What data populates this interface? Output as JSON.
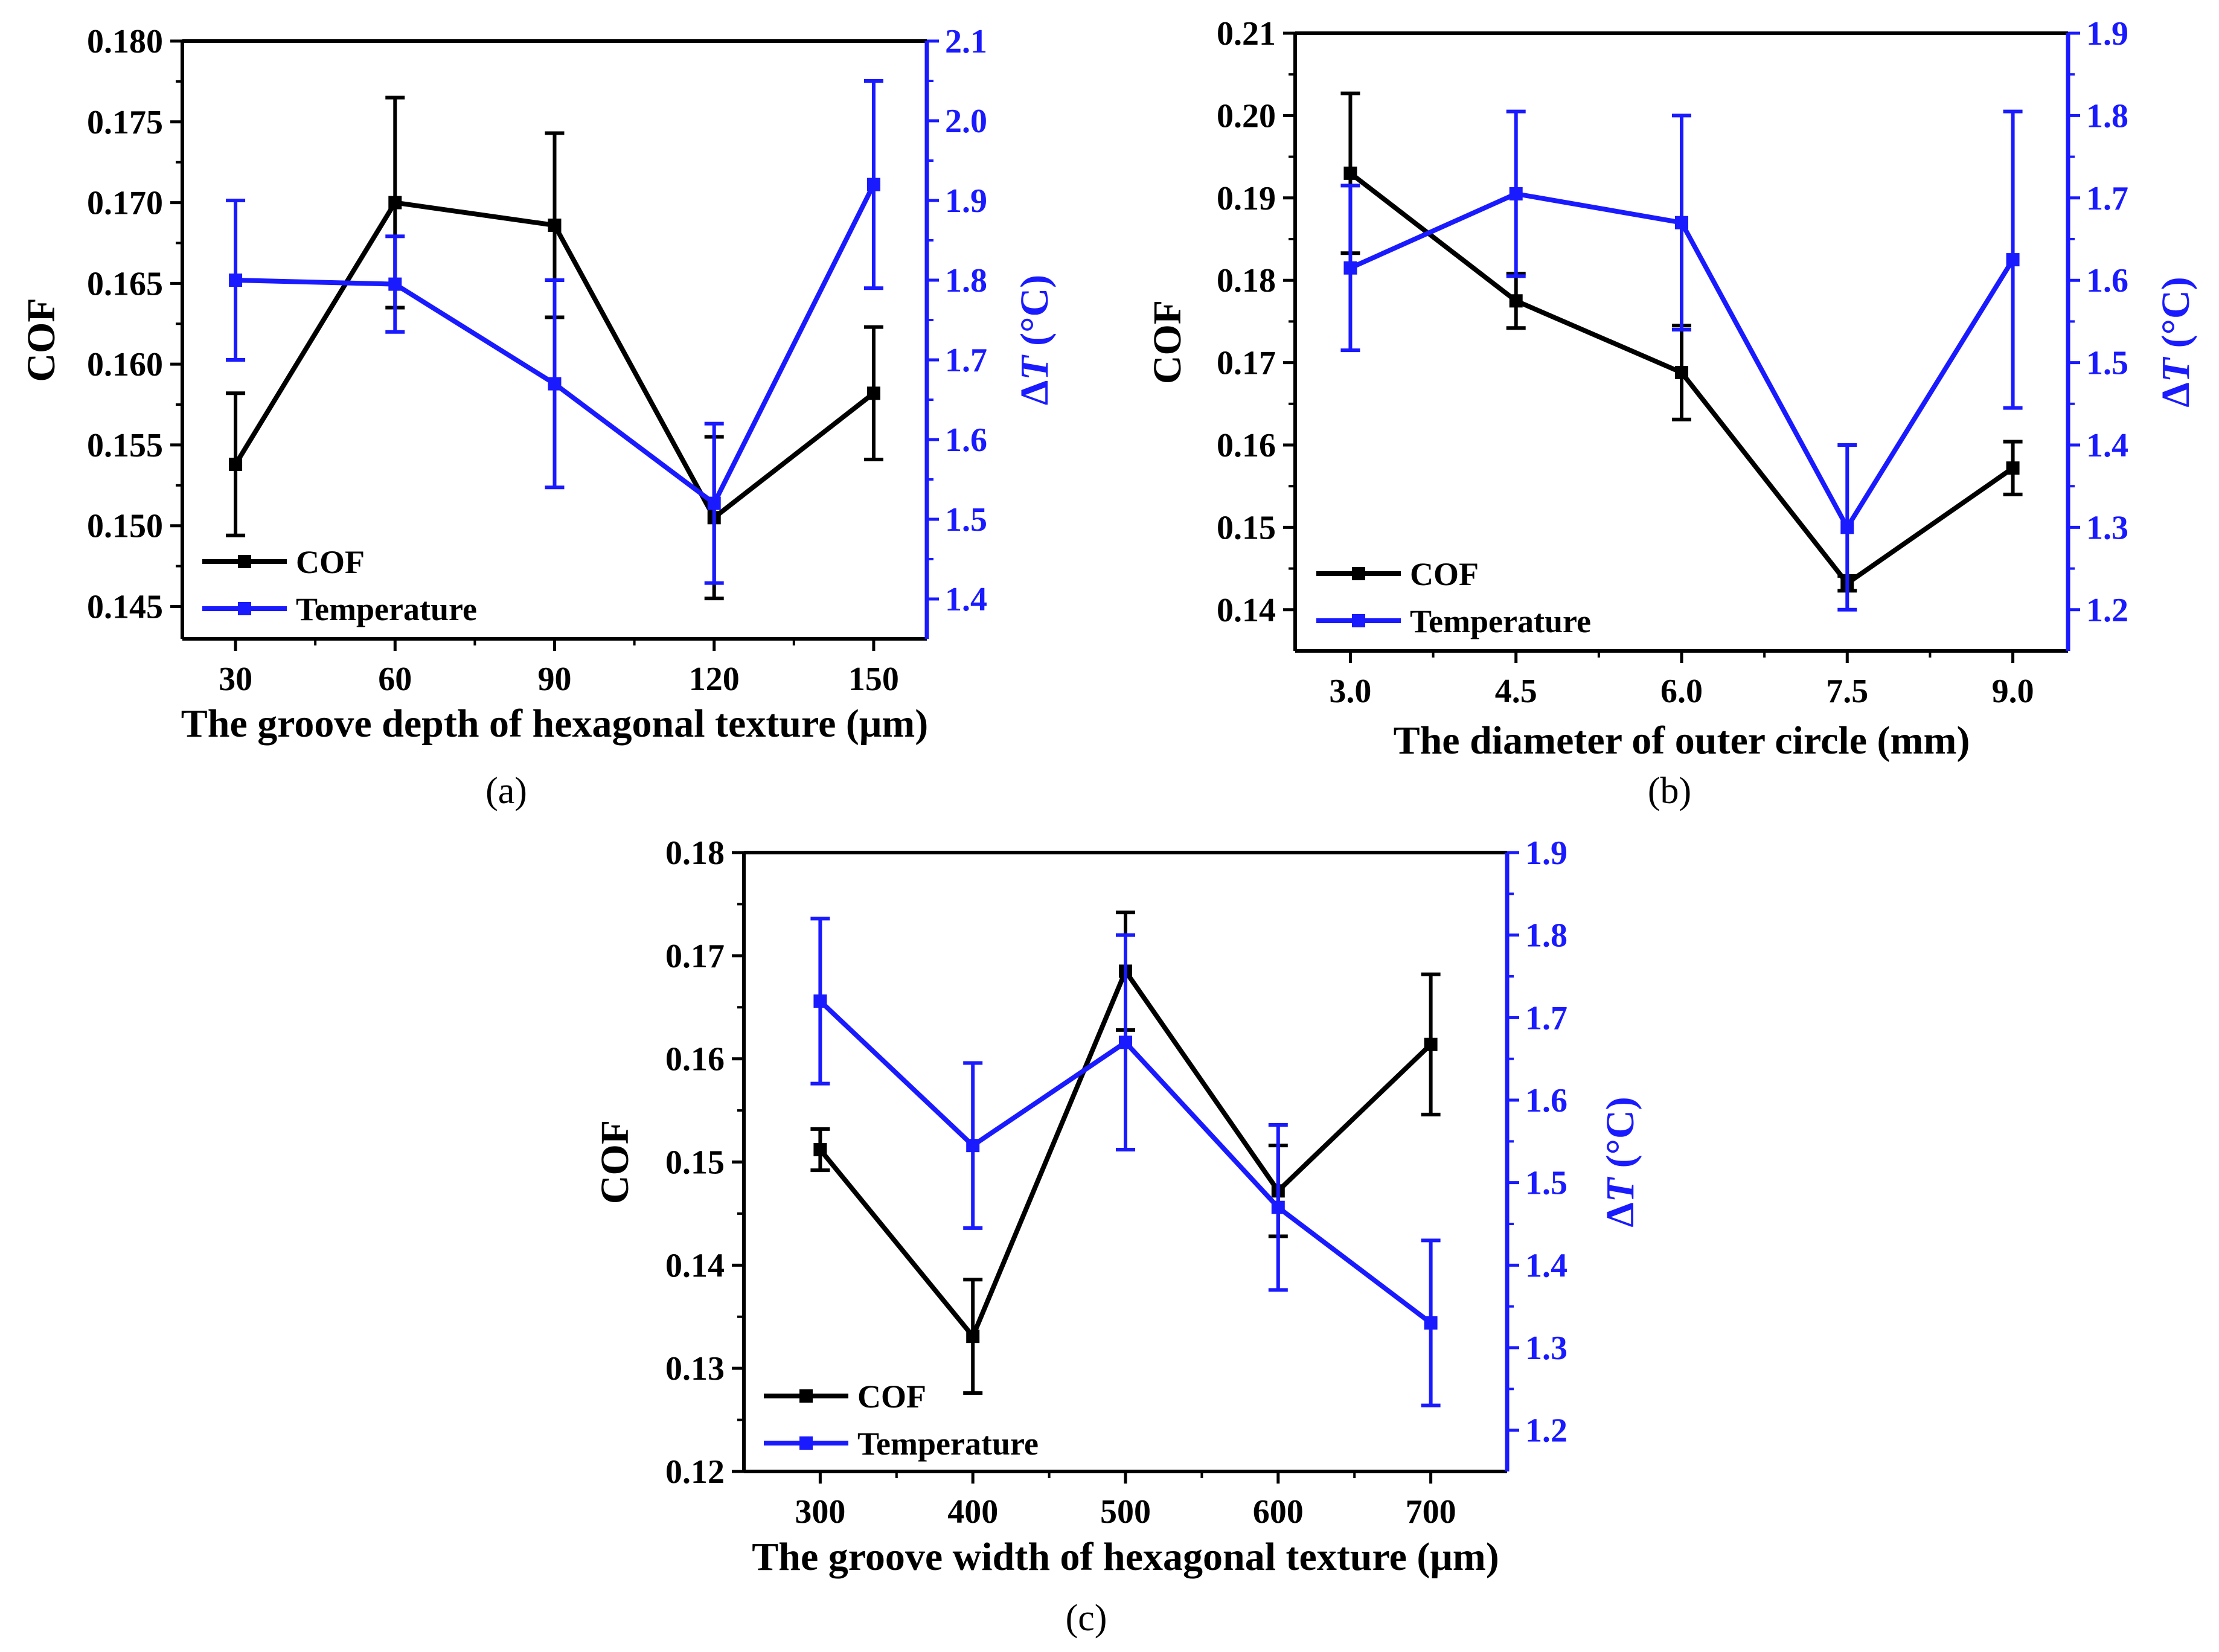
{
  "colors": {
    "cof": "#000000",
    "temperature": "#1a1aff"
  },
  "chart_data": [
    {
      "type": "line",
      "panel_label": "(a)",
      "xlabel": "The groove depth of hexagonal texture (μm)",
      "ylabel": "COF",
      "y2label_prefix": "Δ",
      "y2label_var": "T",
      "y2label_unit": " (°C)",
      "x": [
        30,
        60,
        90,
        120,
        150
      ],
      "xlim": [
        20,
        160
      ],
      "ylim": [
        0.143,
        0.18
      ],
      "y2lim": [
        1.35,
        2.1
      ],
      "xticks": [
        "30",
        "60",
        "90",
        "120",
        "150"
      ],
      "yticks": [
        "0.145",
        "0.150",
        "0.155",
        "0.160",
        "0.165",
        "0.170",
        "0.175",
        "0.180"
      ],
      "y2ticks": [
        "1.4",
        "1.5",
        "1.6",
        "1.7",
        "1.8",
        "1.9",
        "2.0",
        "2.1"
      ],
      "legend": "bottom-left",
      "series": [
        {
          "name": "COF",
          "axis": "left",
          "values": [
            0.1538,
            0.17,
            0.1686,
            0.1505,
            0.1582
          ],
          "errors": [
            0.0044,
            0.0065,
            0.0057,
            0.005,
            0.0041
          ]
        },
        {
          "name": "Temperature",
          "axis": "right",
          "values": [
            1.8,
            1.795,
            1.67,
            1.52,
            1.92
          ],
          "errors": [
            0.1,
            0.06,
            0.13,
            0.1,
            0.13
          ]
        }
      ]
    },
    {
      "type": "line",
      "panel_label": "(b)",
      "xlabel": "The diameter of outer circle (mm)",
      "ylabel": "COF",
      "y2label_prefix": "Δ",
      "y2label_var": "T",
      "y2label_unit": " (°C)",
      "x": [
        3.0,
        4.5,
        6.0,
        7.5,
        9.0
      ],
      "xlim": [
        2.5,
        9.5
      ],
      "ylim": [
        0.135,
        0.21
      ],
      "y2lim": [
        1.15,
        1.9
      ],
      "xticks": [
        "3.0",
        "4.5",
        "6.0",
        "7.5",
        "9.0"
      ],
      "yticks": [
        "0.14",
        "0.15",
        "0.16",
        "0.17",
        "0.18",
        "0.19",
        "0.20",
        "0.21"
      ],
      "y2ticks": [
        "1.2",
        "1.3",
        "1.4",
        "1.5",
        "1.6",
        "1.7",
        "1.8",
        "1.9"
      ],
      "legend": "bottom-left",
      "series": [
        {
          "name": "COF",
          "axis": "left",
          "values": [
            0.193,
            0.1775,
            0.1688,
            0.1432,
            0.1572
          ],
          "errors": [
            0.0097,
            0.0033,
            0.0057,
            0.0009,
            0.0032
          ]
        },
        {
          "name": "Temperature",
          "axis": "right",
          "values": [
            1.615,
            1.705,
            1.67,
            1.3,
            1.625
          ],
          "errors": [
            0.1,
            0.1,
            0.13,
            0.1,
            0.18
          ]
        }
      ]
    },
    {
      "type": "line",
      "panel_label": "(c)",
      "xlabel": "The groove width of hexagonal texture (μm)",
      "ylabel": "COF",
      "y2label_prefix": "Δ",
      "y2label_var": "T",
      "y2label_unit": " (°C)",
      "x": [
        300,
        400,
        500,
        600,
        700
      ],
      "xlim": [
        250,
        750
      ],
      "ylim": [
        0.12,
        0.18
      ],
      "y2lim": [
        1.15,
        1.9
      ],
      "xticks": [
        "300",
        "400",
        "500",
        "600",
        "700"
      ],
      "yticks": [
        "0.12",
        "0.13",
        "0.14",
        "0.15",
        "0.16",
        "0.17",
        "0.18"
      ],
      "y2ticks": [
        "1.2",
        "1.3",
        "1.4",
        "1.5",
        "1.6",
        "1.7",
        "1.8",
        "1.9"
      ],
      "legend": "bottom-left",
      "series": [
        {
          "name": "COF",
          "axis": "left",
          "values": [
            0.1512,
            0.1331,
            0.1685,
            0.1472,
            0.1614
          ],
          "errors": [
            0.002,
            0.0055,
            0.0057,
            0.0044,
            0.0068
          ]
        },
        {
          "name": "Temperature",
          "axis": "right",
          "values": [
            1.72,
            1.545,
            1.67,
            1.47,
            1.33
          ],
          "errors": [
            0.1,
            0.1,
            0.13,
            0.1,
            0.1
          ]
        }
      ]
    }
  ]
}
